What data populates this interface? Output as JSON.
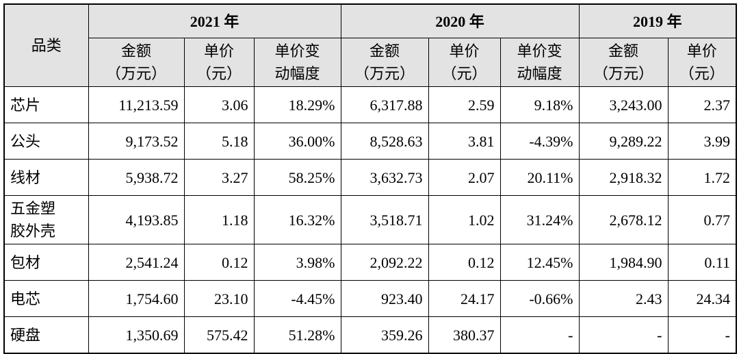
{
  "table": {
    "category_header": "品类",
    "years": [
      {
        "label": "2021 年",
        "columns": [
          "金额\n（万元）",
          "单价\n（元）",
          "单价变\n动幅度"
        ]
      },
      {
        "label": "2020 年",
        "columns": [
          "金额\n（万元）",
          "单价\n（元）",
          "单价变\n动幅度"
        ]
      },
      {
        "label": "2019 年",
        "columns": [
          "金额\n（万元）",
          "单价\n（元）"
        ]
      }
    ],
    "rows": [
      [
        "芯片",
        "11,213.59",
        "3.06",
        "18.29%",
        "6,317.88",
        "2.59",
        "9.18%",
        "3,243.00",
        "2.37"
      ],
      [
        "公头",
        "9,173.52",
        "5.18",
        "36.00%",
        "8,528.63",
        "3.81",
        "-4.39%",
        "9,289.22",
        "3.99"
      ],
      [
        "线材",
        "5,938.72",
        "3.27",
        "58.25%",
        "3,632.73",
        "2.07",
        "20.11%",
        "2,918.32",
        "1.72"
      ],
      [
        "五金塑\n胶外壳",
        "4,193.85",
        "1.18",
        "16.32%",
        "3,518.71",
        "1.02",
        "31.24%",
        "2,678.12",
        "0.77"
      ],
      [
        "包材",
        "2,541.24",
        "0.12",
        "3.98%",
        "2,092.22",
        "0.12",
        "12.45%",
        "1,984.90",
        "0.11"
      ],
      [
        "电芯",
        "1,754.60",
        "23.10",
        "-4.45%",
        "923.40",
        "24.17",
        "-0.66%",
        "2.43",
        "24.34"
      ],
      [
        "硬盘",
        "1,350.69",
        "575.42",
        "51.28%",
        "359.26",
        "380.37",
        "-",
        "-",
        "-"
      ]
    ]
  }
}
